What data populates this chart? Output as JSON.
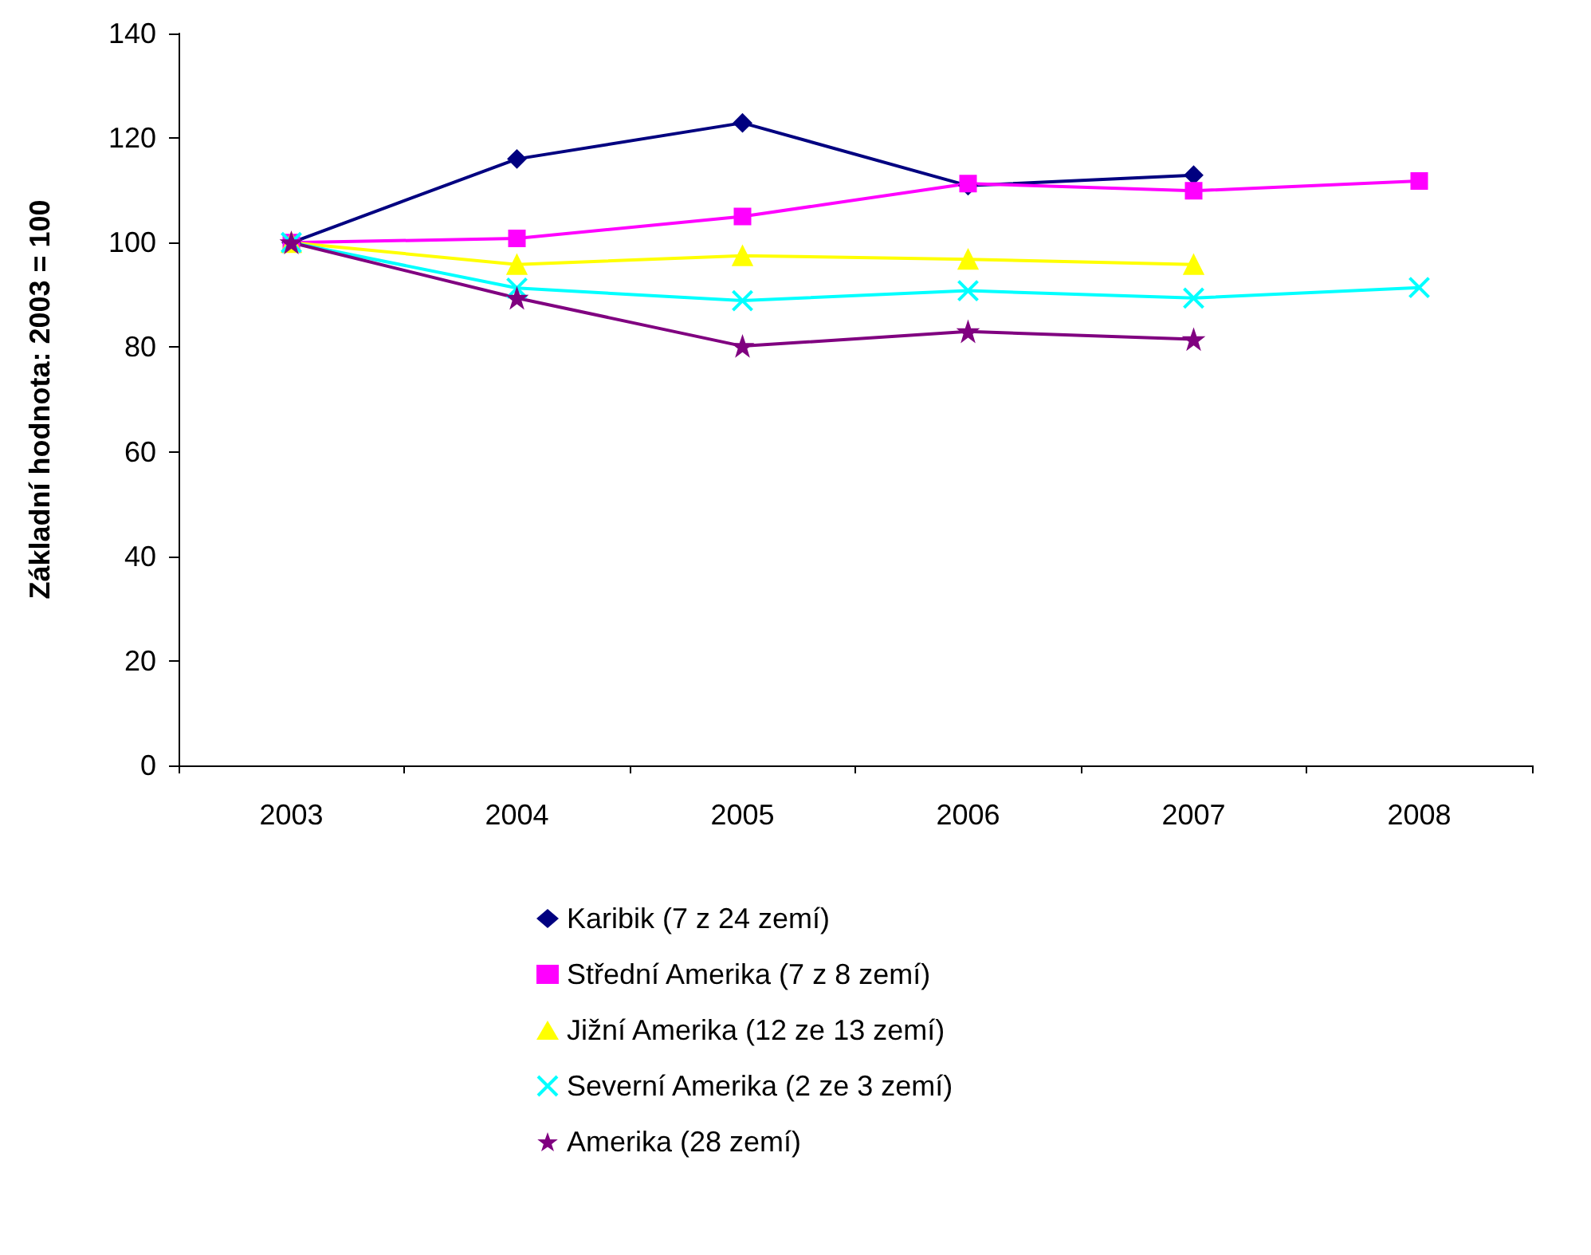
{
  "chart_data": {
    "type": "line",
    "ylabel": "Základní hodnota: 2003 = 100",
    "categories": [
      "2003",
      "2004",
      "2005",
      "2006",
      "2007",
      "2008"
    ],
    "ylim": [
      0,
      140
    ],
    "yticks": [
      0,
      20,
      40,
      60,
      80,
      100,
      120,
      140
    ],
    "grid": false,
    "legend": "bottom",
    "line_style": "solid",
    "series": [
      {
        "name": "Karibik (7 z 24 zemí)",
        "color": "#000080",
        "marker": "diamond",
        "values": [
          100,
          116,
          122.9,
          110.9,
          112.9,
          null
        ]
      },
      {
        "name": "Střední Amerika (7 z 8 zemí)",
        "color": "#ff00ff",
        "marker": "square",
        "values": [
          100,
          100.8,
          105,
          111.3,
          109.9,
          111.8
        ]
      },
      {
        "name": "Jižní Amerika (12 ze 13 zemí)",
        "color": "#ffff00",
        "marker": "triangle",
        "values": [
          100,
          95.8,
          97.5,
          96.8,
          95.8,
          null
        ]
      },
      {
        "name": "Severní Amerika (2 ze 3 zemí)",
        "color": "#00ffff",
        "marker": "cross",
        "values": [
          100,
          91.3,
          88.9,
          90.8,
          89.4,
          91.4
        ]
      },
      {
        "name": "Amerika (28 zemí)",
        "color": "#800080",
        "marker": "star",
        "values": [
          100,
          89.4,
          80.2,
          83,
          81.5,
          null
        ]
      }
    ]
  }
}
